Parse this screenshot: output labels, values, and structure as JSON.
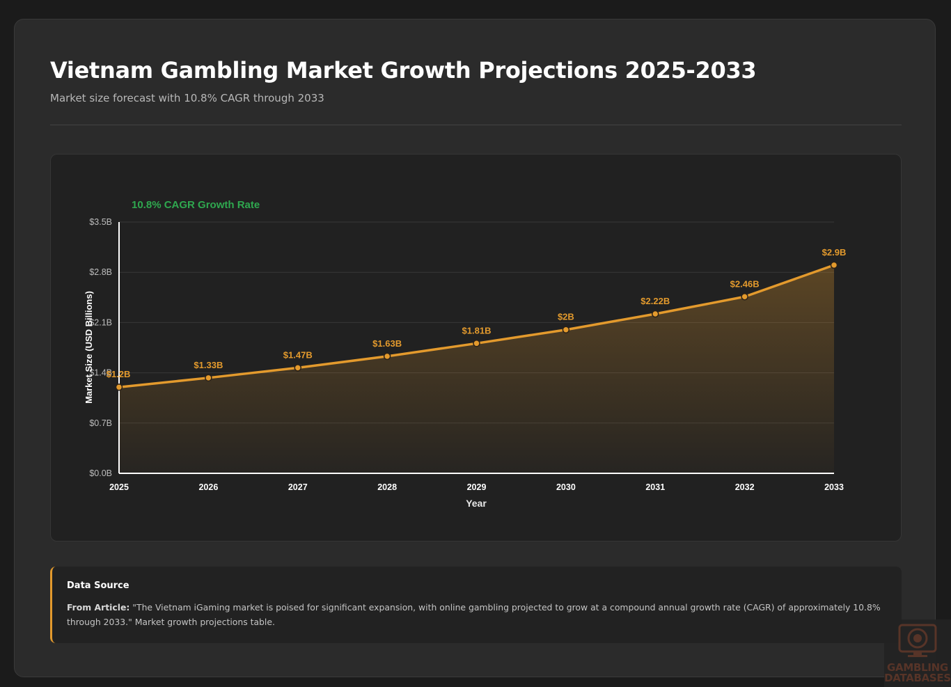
{
  "header": {
    "title": "Vietnam Gambling Market Growth Projections 2025-2033",
    "subtitle": "Market size forecast with 10.8% CAGR through 2033"
  },
  "chart_data": {
    "type": "area",
    "annotation": "10.8% CAGR Growth Rate",
    "xlabel": "Year",
    "ylabel": "Market Size (USD Billions)",
    "categories": [
      "2025",
      "2026",
      "2027",
      "2028",
      "2029",
      "2030",
      "2031",
      "2032",
      "2033"
    ],
    "values": [
      1.2,
      1.33,
      1.47,
      1.63,
      1.81,
      2.0,
      2.22,
      2.46,
      2.9
    ],
    "data_labels": [
      "$1.2B",
      "$1.33B",
      "$1.47B",
      "$1.63B",
      "$1.81B",
      "$2B",
      "$2.22B",
      "$2.46B",
      "$2.9B"
    ],
    "ylim": [
      0,
      3.5
    ],
    "yticks": [
      0,
      0.7,
      1.4,
      2.1,
      2.8,
      3.5
    ],
    "ytick_labels": [
      "$0.0B",
      "$0.7B",
      "$1.4B",
      "$2.1B",
      "$2.8B",
      "$3.5B"
    ],
    "grid": true,
    "colors": {
      "line": "#e39a2d",
      "annotation": "#2fa84f",
      "label": "#e39a2d"
    }
  },
  "source": {
    "heading": "Data Source",
    "prefix": "From Article:",
    "quote": "\"The Vietnam iGaming market is poised for significant expansion, with online gambling projected to grow at a compound annual growth rate (CAGR) of approximately 10.8% through 2033.\" Market growth projections table."
  },
  "watermark": {
    "line1": "GAMBLING",
    "line2": "DATABASES",
    "icon": "poker-chip-monitor-icon"
  }
}
